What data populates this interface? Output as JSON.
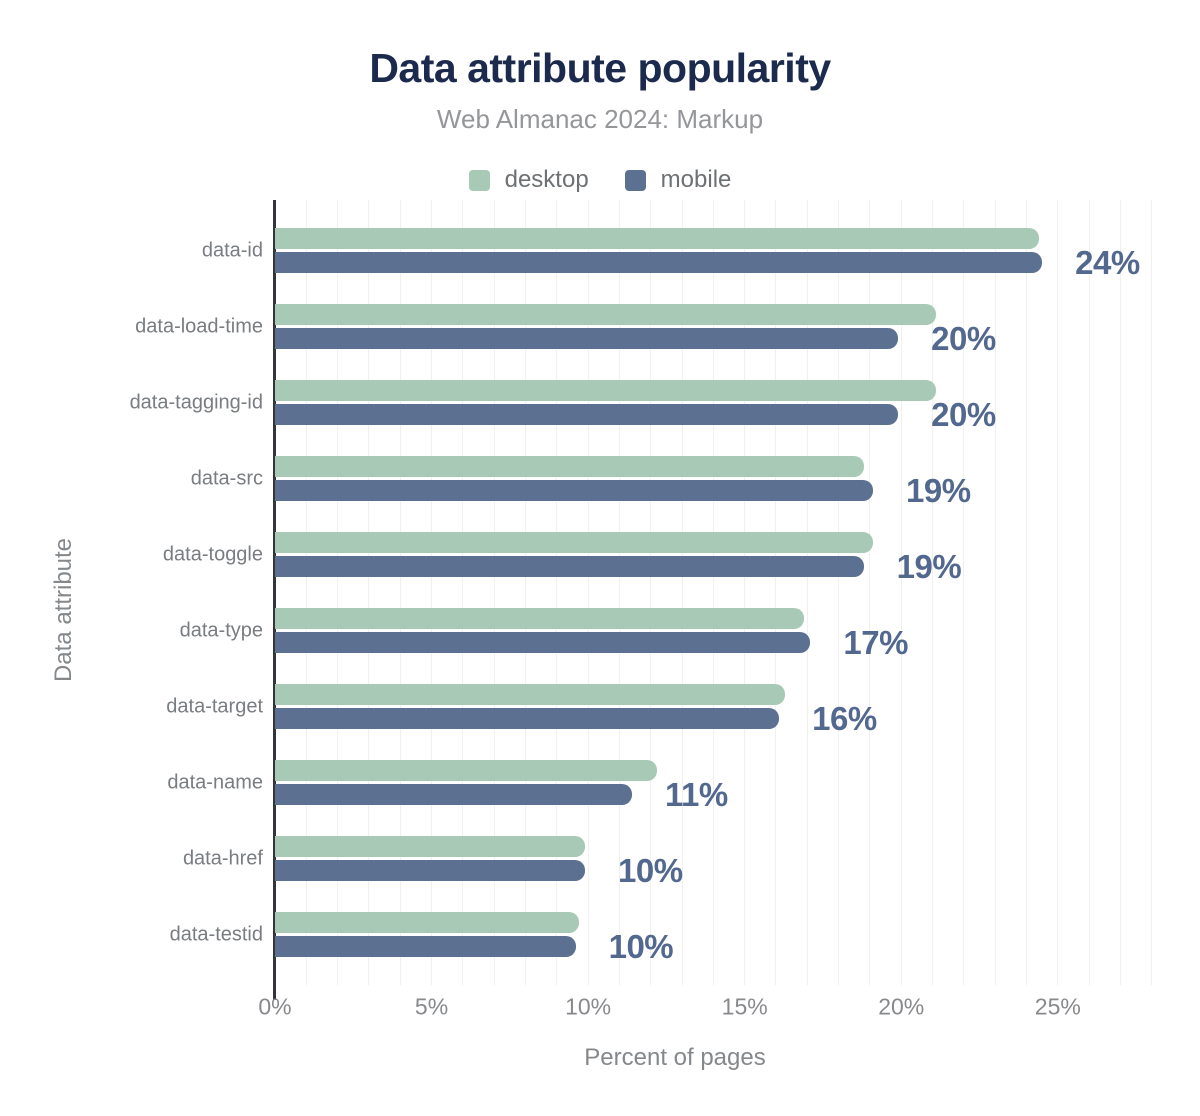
{
  "chart_data": {
    "type": "bar",
    "orientation": "horizontal",
    "title": "Data attribute popularity",
    "subtitle": "Web Almanac 2024: Markup",
    "xlabel": "Percent of pages",
    "ylabel": "Data attribute",
    "xlim": [
      0,
      28.2
    ],
    "x_ticks": [
      0,
      5,
      10,
      15,
      20,
      25
    ],
    "x_tick_labels": [
      "0%",
      "5%",
      "10%",
      "15%",
      "20%",
      "25%"
    ],
    "grid": {
      "shown": true,
      "minor_step_pct": 1
    },
    "legend_position": "top",
    "categories": [
      "data-id",
      "data-load-time",
      "data-tagging-id",
      "data-src",
      "data-toggle",
      "data-type",
      "data-target",
      "data-name",
      "data-href",
      "data-testid"
    ],
    "series": [
      {
        "name": "desktop",
        "color": "#a7c9b5",
        "values": [
          24.4,
          21.1,
          21.1,
          18.8,
          19.1,
          16.9,
          16.3,
          12.2,
          9.9,
          9.7
        ]
      },
      {
        "name": "mobile",
        "color": "#5c7091",
        "values": [
          24.5,
          19.9,
          19.9,
          19.1,
          18.8,
          17.1,
          16.1,
          11.4,
          9.9,
          9.6
        ]
      }
    ],
    "value_labels": [
      "24%",
      "20%",
      "20%",
      "19%",
      "19%",
      "17%",
      "16%",
      "11%",
      "10%",
      "10%"
    ],
    "colors": {
      "title": "#1c2a4e",
      "subtitle": "#949699",
      "legend_text": "#6e7174",
      "category_text": "#797d81",
      "tick_text": "#87898c",
      "axis_title_text": "#85888b",
      "value_label_text": "#53688e",
      "gridline": "#f0f0f0",
      "axis_line": "#333539"
    }
  }
}
